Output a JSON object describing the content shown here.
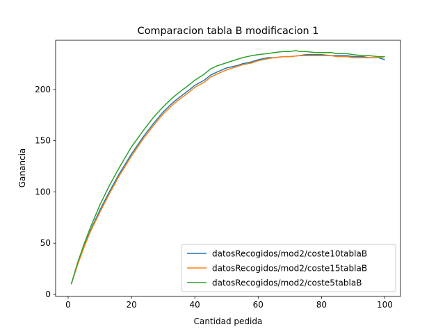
{
  "chart_data": {
    "type": "line",
    "title": "Comparacion tabla B modificacion 1",
    "xlabel": "Cantidad pedida",
    "ylabel": "Ganancia",
    "xlim": [
      -3.95,
      104.95
    ],
    "ylim": [
      -2,
      248
    ],
    "xticks": [
      0,
      20,
      40,
      60,
      80,
      100
    ],
    "yticks": [
      0,
      50,
      100,
      150,
      200
    ],
    "grid": false,
    "legend_position": "lower-right",
    "series": [
      {
        "name": "datosRecogidos/mod2/coste10tablaB",
        "color": "#1f77b4",
        "x": [
          1,
          3,
          5,
          7,
          10,
          13,
          16,
          20,
          24,
          27,
          30,
          33,
          35,
          38,
          40,
          43,
          45,
          47,
          50,
          53,
          55,
          58,
          60,
          63,
          65,
          68,
          70,
          73,
          75,
          78,
          80,
          83,
          85,
          88,
          90,
          93,
          95,
          98,
          100
        ],
        "y": [
          10,
          30,
          47,
          62,
          82,
          100,
          117,
          137,
          155,
          167,
          178,
          187,
          192,
          199,
          204,
          209,
          214,
          217,
          221,
          223,
          225,
          227,
          229,
          231,
          231,
          232,
          232,
          233,
          234,
          234,
          234,
          233,
          233,
          233,
          232,
          232,
          231,
          231,
          229
        ]
      },
      {
        "name": "datosRecogidos/mod2/coste15tablaB",
        "color": "#ff7f0e",
        "x": [
          1,
          3,
          5,
          7,
          10,
          13,
          16,
          20,
          24,
          27,
          30,
          33,
          35,
          38,
          40,
          43,
          45,
          47,
          50,
          53,
          55,
          58,
          60,
          63,
          65,
          68,
          70,
          73,
          75,
          78,
          80,
          83,
          85,
          88,
          90,
          93,
          95,
          98,
          100
        ],
        "y": [
          10,
          29,
          46,
          61,
          80,
          98,
          115,
          135,
          153,
          165,
          176,
          185,
          190,
          197,
          202,
          207,
          212,
          215,
          219,
          222,
          224,
          226,
          228,
          230,
          231,
          232,
          232,
          233,
          233,
          233,
          233,
          233,
          232,
          232,
          231,
          231,
          231,
          231,
          232
        ]
      },
      {
        "name": "datosRecogidos/mod2/coste5tablaB",
        "color": "#2ca02c",
        "x": [
          1,
          3,
          5,
          7,
          10,
          13,
          16,
          20,
          24,
          27,
          30,
          33,
          35,
          38,
          40,
          43,
          45,
          47,
          50,
          53,
          55,
          58,
          60,
          63,
          65,
          68,
          70,
          72,
          73,
          75,
          78,
          80,
          83,
          85,
          88,
          90,
          93,
          95,
          98,
          100
        ],
        "y": [
          10,
          31,
          49,
          65,
          87,
          106,
          123,
          144,
          161,
          173,
          183,
          192,
          197,
          204,
          209,
          215,
          220,
          223,
          226,
          229,
          231,
          233,
          234,
          235,
          236,
          237,
          237,
          238,
          237,
          237,
          236,
          236,
          236,
          235,
          235,
          234,
          233,
          233,
          232,
          232
        ]
      }
    ]
  }
}
